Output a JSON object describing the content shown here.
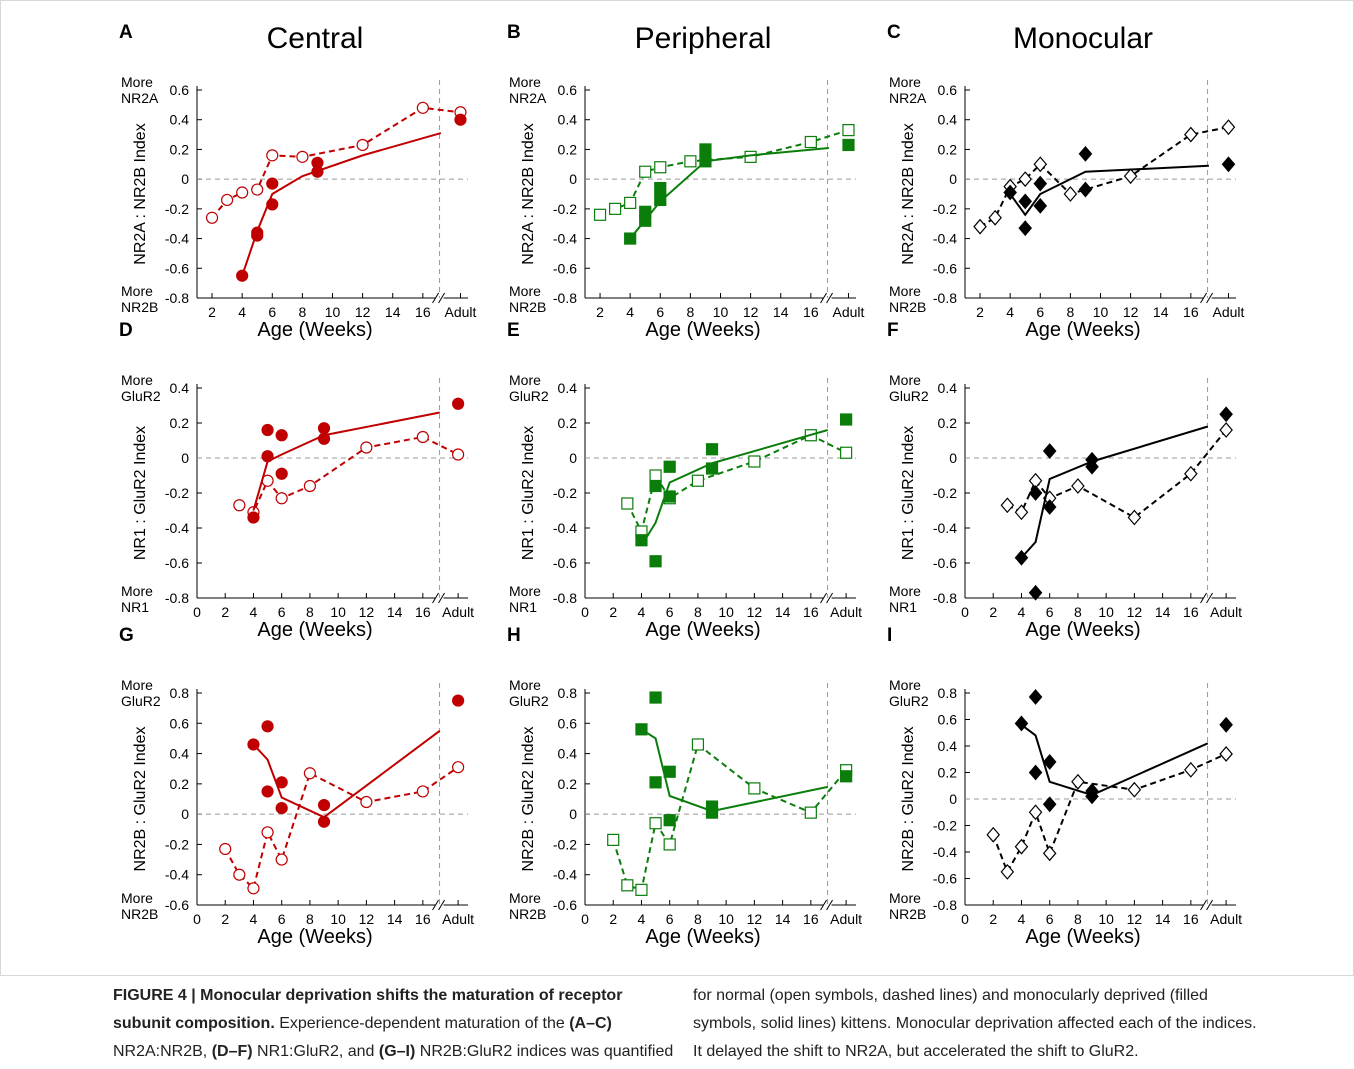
{
  "chart_data": [
    {
      "type": "line",
      "panel": "A",
      "title": "Central",
      "ylabel": "NR2A : NR2B Index",
      "xlabel": "Age (Weeks)",
      "y_top_label": [
        "More",
        "NR2A"
      ],
      "y_bottom_label": [
        "More",
        "NR2B"
      ],
      "color": "#c00000",
      "marker_shape": "circle",
      "xlim": [
        1,
        19
      ],
      "ylim": [
        -0.8,
        0.6
      ],
      "xticks": [
        2,
        4,
        6,
        8,
        10,
        12,
        14,
        16,
        {
          "value": 18.5,
          "label": "Adult"
        }
      ],
      "yticks": [
        -0.8,
        -0.6,
        -0.4,
        -0.2,
        0,
        0.2,
        0.4,
        0.6
      ],
      "series": [
        {
          "marker": "open",
          "line": "dashed",
          "x": [
            2,
            3,
            4,
            5,
            6,
            8,
            12,
            16,
            18.5
          ],
          "values": [
            -0.26,
            -0.14,
            -0.09,
            -0.07,
            0.16,
            0.15,
            0.23,
            0.48,
            0.45
          ]
        },
        {
          "marker": "filled",
          "x": [
            4,
            5,
            5,
            6,
            6,
            9,
            9,
            18.5
          ],
          "values": [
            -0.65,
            -0.36,
            -0.38,
            -0.17,
            -0.03,
            0.11,
            0.05,
            0.4
          ]
        },
        {
          "line": "solid",
          "x": [
            4,
            5,
            6,
            8,
            12,
            17.2
          ],
          "values": [
            -0.65,
            -0.35,
            -0.1,
            0.02,
            0.16,
            0.31
          ]
        }
      ]
    },
    {
      "type": "line",
      "panel": "B",
      "title": "Peripheral",
      "ylabel": "NR2A : NR2B Index",
      "xlabel": "Age (Weeks)",
      "y_top_label": [
        "More",
        "NR2A"
      ],
      "y_bottom_label": [
        "More",
        "NR2B"
      ],
      "color": "#0a7d0a",
      "marker_shape": "square",
      "xlim": [
        1,
        19
      ],
      "ylim": [
        -0.8,
        0.6
      ],
      "xticks": [
        2,
        4,
        6,
        8,
        10,
        12,
        14,
        16,
        {
          "value": 18.5,
          "label": "Adult"
        }
      ],
      "yticks": [
        -0.8,
        -0.6,
        -0.4,
        -0.2,
        0,
        0.2,
        0.4,
        0.6
      ],
      "series": [
        {
          "marker": "open",
          "line": "dashed",
          "x": [
            2,
            3,
            4,
            5,
            6,
            8,
            12,
            16,
            18.5
          ],
          "values": [
            -0.24,
            -0.2,
            -0.16,
            0.05,
            0.08,
            0.12,
            0.15,
            0.25,
            0.33
          ]
        },
        {
          "marker": "filled",
          "x": [
            4,
            5,
            5,
            6,
            6,
            9,
            9,
            18.5
          ],
          "values": [
            -0.4,
            -0.22,
            -0.28,
            -0.14,
            -0.06,
            0.2,
            0.12,
            0.23
          ]
        },
        {
          "line": "solid",
          "x": [
            4,
            6,
            9,
            12,
            17.2
          ],
          "values": [
            -0.4,
            -0.15,
            0.12,
            0.16,
            0.21
          ]
        }
      ]
    },
    {
      "type": "line",
      "panel": "C",
      "title": "Monocular",
      "ylabel": "NR2A : NR2B Index",
      "xlabel": "Age (Weeks)",
      "y_top_label": [
        "More",
        "NR2A"
      ],
      "y_bottom_label": [
        "More",
        "NR2B"
      ],
      "color": "#000000",
      "marker_shape": "diamond",
      "xlim": [
        1,
        19
      ],
      "ylim": [
        -0.8,
        0.6
      ],
      "xticks": [
        2,
        4,
        6,
        8,
        10,
        12,
        14,
        16,
        {
          "value": 18.5,
          "label": "Adult"
        }
      ],
      "yticks": [
        -0.8,
        -0.6,
        -0.4,
        -0.2,
        0,
        0.2,
        0.4,
        0.6
      ],
      "series": [
        {
          "marker": "open",
          "line": "dashed",
          "x": [
            2,
            3,
            4,
            5,
            6,
            8,
            12,
            16,
            18.5
          ],
          "values": [
            -0.32,
            -0.26,
            -0.05,
            0.0,
            0.1,
            -0.1,
            0.02,
            0.3,
            0.35
          ]
        },
        {
          "marker": "filled",
          "x": [
            4,
            5,
            5,
            6,
            6,
            9,
            9,
            18.5
          ],
          "values": [
            -0.09,
            -0.15,
            -0.33,
            -0.03,
            -0.18,
            0.17,
            -0.07,
            0.1
          ]
        },
        {
          "line": "solid",
          "x": [
            4,
            5,
            6,
            9,
            17.2
          ],
          "values": [
            -0.1,
            -0.24,
            -0.1,
            0.05,
            0.09
          ]
        }
      ]
    },
    {
      "type": "line",
      "panel": "D",
      "ylabel": "NR1 : GluR2 Index",
      "xlabel": "Age (Weeks)",
      "y_top_label": [
        "More",
        "GluR2"
      ],
      "y_bottom_label": [
        "More",
        "NR1"
      ],
      "color": "#c00000",
      "marker_shape": "circle",
      "xlim": [
        0,
        19.2
      ],
      "ylim": [
        -0.8,
        0.4
      ],
      "xticks": [
        0,
        2,
        4,
        6,
        8,
        10,
        12,
        14,
        16,
        {
          "value": 18.5,
          "label": "Adult"
        }
      ],
      "yticks": [
        -0.8,
        -0.6,
        -0.4,
        -0.2,
        0,
        0.2,
        0.4
      ],
      "series": [
        {
          "marker": "open",
          "line": "dashed",
          "x": [
            3,
            4,
            5,
            6,
            8,
            12,
            16,
            18.5
          ],
          "values": [
            -0.27,
            -0.31,
            -0.13,
            -0.23,
            -0.16,
            0.06,
            0.12,
            0.02
          ]
        },
        {
          "marker": "filled",
          "x": [
            4,
            5,
            5,
            6,
            6,
            9,
            9,
            18.5
          ],
          "values": [
            -0.34,
            0.16,
            0.01,
            0.13,
            -0.09,
            0.17,
            0.11,
            0.31
          ]
        },
        {
          "line": "solid",
          "x": [
            4,
            5,
            6,
            9,
            17.2
          ],
          "values": [
            -0.3,
            -0.02,
            0.02,
            0.13,
            0.26
          ]
        }
      ]
    },
    {
      "type": "line",
      "panel": "E",
      "ylabel": "NR1 : GluR2 Index",
      "xlabel": "Age (Weeks)",
      "y_top_label": [
        "More",
        "GluR2"
      ],
      "y_bottom_label": [
        "More",
        "NR1"
      ],
      "color": "#0a7d0a",
      "marker_shape": "square",
      "xlim": [
        0,
        19.2
      ],
      "ylim": [
        -0.8,
        0.4
      ],
      "xticks": [
        0,
        2,
        4,
        6,
        8,
        10,
        12,
        14,
        16,
        {
          "value": 18.5,
          "label": "Adult"
        }
      ],
      "yticks": [
        -0.8,
        -0.6,
        -0.4,
        -0.2,
        0,
        0.2,
        0.4
      ],
      "series": [
        {
          "marker": "open",
          "line": "dashed",
          "x": [
            3,
            4,
            5,
            6,
            8,
            12,
            16,
            18.5
          ],
          "values": [
            -0.26,
            -0.42,
            -0.1,
            -0.23,
            -0.13,
            -0.02,
            0.13,
            0.03
          ]
        },
        {
          "marker": "filled",
          "x": [
            4,
            5,
            5,
            6,
            6,
            9,
            9,
            18.5
          ],
          "values": [
            -0.47,
            -0.16,
            -0.59,
            -0.05,
            -0.22,
            0.05,
            -0.06,
            0.22
          ]
        },
        {
          "line": "solid",
          "x": [
            4,
            5,
            6,
            9,
            17.2
          ],
          "values": [
            -0.5,
            -0.37,
            -0.14,
            -0.03,
            0.16
          ]
        }
      ]
    },
    {
      "type": "line",
      "panel": "F",
      "ylabel": "NR1 : GluR2 Index",
      "xlabel": "Age (Weeks)",
      "y_top_label": [
        "More",
        "GluR2"
      ],
      "y_bottom_label": [
        "More",
        "NR1"
      ],
      "color": "#000000",
      "marker_shape": "diamond",
      "xlim": [
        0,
        19.2
      ],
      "ylim": [
        -0.8,
        0.4
      ],
      "xticks": [
        0,
        2,
        4,
        6,
        8,
        10,
        12,
        14,
        16,
        {
          "value": 18.5,
          "label": "Adult"
        }
      ],
      "yticks": [
        -0.8,
        -0.6,
        -0.4,
        -0.2,
        0,
        0.2,
        0.4
      ],
      "series": [
        {
          "marker": "open",
          "line": "dashed",
          "x": [
            3,
            4,
            5,
            6,
            8,
            12,
            16,
            18.5
          ],
          "values": [
            -0.27,
            -0.31,
            -0.13,
            -0.23,
            -0.16,
            -0.34,
            -0.09,
            0.16
          ]
        },
        {
          "marker": "filled",
          "x": [
            4,
            5,
            5,
            6,
            6,
            9,
            9,
            18.5
          ],
          "values": [
            -0.57,
            -0.2,
            -0.77,
            0.04,
            -0.28,
            -0.01,
            -0.05,
            0.25
          ]
        },
        {
          "line": "solid",
          "x": [
            4,
            5,
            6,
            9,
            17.2
          ],
          "values": [
            -0.57,
            -0.48,
            -0.12,
            -0.02,
            0.18
          ]
        }
      ]
    },
    {
      "type": "line",
      "panel": "G",
      "ylabel": "NR2B : GluR2 Index",
      "xlabel": "Age (Weeks)",
      "y_top_label": [
        "More",
        "GluR2"
      ],
      "y_bottom_label": [
        "More",
        "NR2B"
      ],
      "color": "#c00000",
      "marker_shape": "circle",
      "xlim": [
        0,
        19.2
      ],
      "ylim": [
        -0.6,
        0.8
      ],
      "xticks": [
        0,
        2,
        4,
        6,
        8,
        10,
        12,
        14,
        16,
        {
          "value": 18.5,
          "label": "Adult"
        }
      ],
      "yticks": [
        -0.6,
        -0.4,
        -0.2,
        0,
        0.2,
        0.4,
        0.6,
        0.8
      ],
      "series": [
        {
          "marker": "open",
          "line": "dashed",
          "x": [
            2,
            3,
            4,
            5,
            6,
            8,
            12,
            16,
            18.5
          ],
          "values": [
            -0.23,
            -0.4,
            -0.49,
            -0.12,
            -0.3,
            0.27,
            0.08,
            0.15,
            0.31
          ]
        },
        {
          "marker": "filled",
          "x": [
            4,
            5,
            5,
            6,
            6,
            9,
            9,
            18.5
          ],
          "values": [
            0.46,
            0.58,
            0.15,
            0.21,
            0.04,
            0.06,
            -0.05,
            0.75
          ]
        },
        {
          "line": "solid",
          "x": [
            4,
            5,
            6,
            9,
            17.2
          ],
          "values": [
            0.46,
            0.36,
            0.11,
            -0.02,
            0.55
          ]
        }
      ]
    },
    {
      "type": "line",
      "panel": "H",
      "ylabel": "NR2B : GluR2 Index",
      "xlabel": "Age (Weeks)",
      "y_top_label": [
        "More",
        "GluR2"
      ],
      "y_bottom_label": [
        "More",
        "NR2B"
      ],
      "color": "#0a7d0a",
      "marker_shape": "square",
      "xlim": [
        0,
        19.2
      ],
      "ylim": [
        -0.6,
        0.8
      ],
      "xticks": [
        0,
        2,
        4,
        6,
        8,
        10,
        12,
        14,
        16,
        {
          "value": 18.5,
          "label": "Adult"
        }
      ],
      "yticks": [
        -0.6,
        -0.4,
        -0.2,
        0,
        0.2,
        0.4,
        0.6,
        0.8
      ],
      "series": [
        {
          "marker": "open",
          "line": "dashed",
          "x": [
            2,
            3,
            4,
            5,
            6,
            8,
            12,
            16,
            18.5
          ],
          "values": [
            -0.17,
            -0.47,
            -0.5,
            -0.06,
            -0.2,
            0.46,
            0.17,
            0.01,
            0.29
          ]
        },
        {
          "marker": "filled",
          "x": [
            4,
            5,
            5,
            6,
            6,
            9,
            9,
            18.5
          ],
          "values": [
            0.56,
            0.77,
            0.21,
            0.28,
            -0.04,
            0.05,
            0.01,
            0.25
          ]
        },
        {
          "line": "solid",
          "x": [
            4,
            5,
            6,
            9,
            17.2
          ],
          "values": [
            0.56,
            0.5,
            0.12,
            0.02,
            0.18
          ]
        }
      ]
    },
    {
      "type": "line",
      "panel": "I",
      "ylabel": "NR2B : GluR2 Index",
      "xlabel": "Age (Weeks)",
      "y_top_label": [
        "More",
        "GluR2"
      ],
      "y_bottom_label": [
        "More",
        "NR2B"
      ],
      "color": "#000000",
      "marker_shape": "diamond",
      "xlim": [
        0,
        19.2
      ],
      "ylim": [
        -0.8,
        0.8
      ],
      "xticks": [
        0,
        2,
        4,
        6,
        8,
        10,
        12,
        14,
        16,
        {
          "value": 18.5,
          "label": "Adult"
        }
      ],
      "yticks": [
        -0.8,
        -0.6,
        -0.4,
        -0.2,
        0,
        0.2,
        0.4,
        0.6,
        0.8
      ],
      "series": [
        {
          "marker": "open",
          "line": "dashed",
          "x": [
            2,
            3,
            4,
            5,
            6,
            8,
            12,
            16,
            18.5
          ],
          "values": [
            -0.27,
            -0.55,
            -0.36,
            -0.1,
            -0.41,
            0.13,
            0.07,
            0.22,
            0.34
          ]
        },
        {
          "marker": "filled",
          "x": [
            4,
            5,
            5,
            6,
            6,
            9,
            9,
            18.5
          ],
          "values": [
            0.57,
            0.77,
            0.2,
            0.28,
            -0.04,
            0.06,
            0.02,
            0.56
          ]
        },
        {
          "line": "solid",
          "x": [
            4,
            5,
            6,
            9,
            17.2
          ],
          "values": [
            0.56,
            0.48,
            0.13,
            0.03,
            0.42
          ]
        }
      ]
    }
  ],
  "caption": {
    "left": [
      [
        {
          "t": "FIGURE 4 | Monocular deprivation shifts the maturation of receptor",
          "b": true
        }
      ],
      [
        {
          "t": "subunit composition.",
          "b": true
        },
        {
          "t": " Experience-dependent maturation of the "
        },
        {
          "t": "(A–C)",
          "b": true
        }
      ],
      [
        {
          "t": "NR2A:NR2B, "
        },
        {
          "t": "(D–F)",
          "b": true
        },
        {
          "t": " NR1:GluR2, and "
        },
        {
          "t": "(G–I)",
          "b": true
        },
        {
          "t": " NR2B:GluR2 indices was quantified"
        }
      ]
    ],
    "right": [
      [
        {
          "t": "for normal (open symbols, dashed lines) and monocularly deprived (filled"
        }
      ],
      [
        {
          "t": "symbols, solid lines) kittens. Monocular deprivation affected each of the indices."
        }
      ],
      [
        {
          "t": "It delayed the shift to NR2A, but accelerated the shift to GluR2."
        }
      ]
    ]
  }
}
